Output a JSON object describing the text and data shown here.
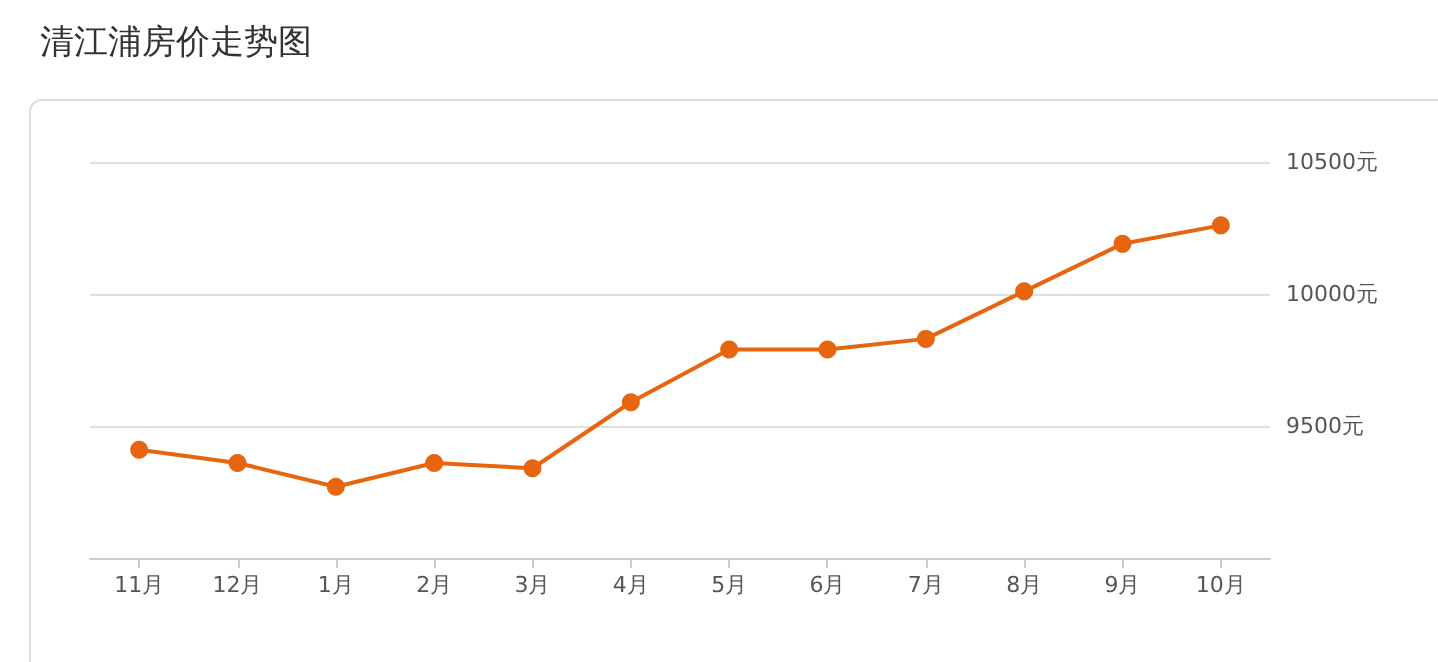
{
  "chart_data": {
    "type": "line",
    "title": "清江浦房价走势图",
    "categories": [
      "11月",
      "12月",
      "1月",
      "2月",
      "3月",
      "4月",
      "5月",
      "6月",
      "7月",
      "8月",
      "9月",
      "10月"
    ],
    "series": [
      {
        "color": "#e8650f",
        "values": [
          9410,
          9360,
          9270,
          9360,
          9340,
          9590,
          9790,
          9790,
          9830,
          10010,
          10190,
          10260
        ]
      }
    ],
    "ylim": [
      9000,
      10500
    ],
    "yticks": [
      {
        "value": 9000,
        "label": null
      },
      {
        "value": 9500,
        "label": "9500元"
      },
      {
        "value": 10000,
        "label": "10000元"
      },
      {
        "value": 10500,
        "label": "10500元"
      }
    ],
    "grid": "y",
    "marker": "circle",
    "line_style": "solid"
  }
}
